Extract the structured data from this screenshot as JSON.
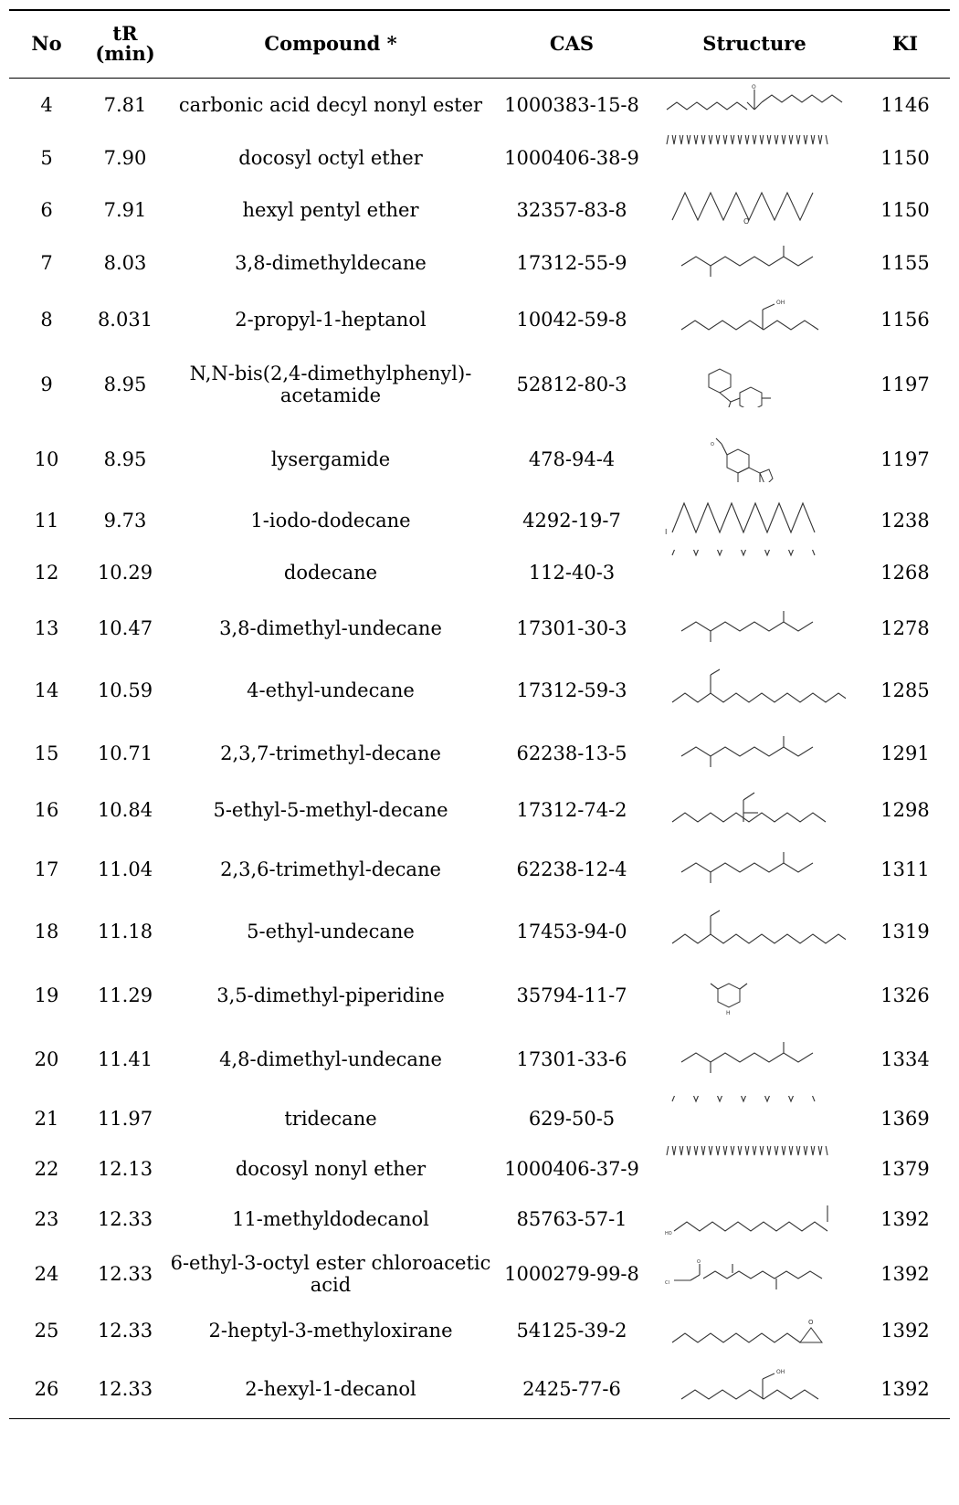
{
  "header": {
    "no": "No",
    "tr_line1": "tR",
    "tr_line2": "(min)",
    "compound": "Compound *",
    "cas": "CAS",
    "structure": "Structure",
    "ki": "KI"
  },
  "rows": [
    {
      "no": "4",
      "tr": "7.81",
      "compound": "carbonic acid decyl nonyl ester",
      "cas": "1000383-15-8",
      "ki": "1146",
      "structure": "carbonate-ester"
    },
    {
      "no": "5",
      "tr": "7.90",
      "compound": "docosyl octyl ether",
      "cas": "1000406-38-9",
      "ki": "1150",
      "structure": "long-ether"
    },
    {
      "no": "6",
      "tr": "7.91",
      "compound": "hexyl pentyl ether",
      "cas": "32357-83-8",
      "ki": "1150",
      "structure": "ether"
    },
    {
      "no": "7",
      "tr": "8.03",
      "compound": "3,8-dimethyldecane",
      "cas": "17312-55-9",
      "ki": "1155",
      "structure": "branched-alkane"
    },
    {
      "no": "8",
      "tr": "8.031",
      "compound": "2-propyl-1-heptanol",
      "cas": "10042-59-8",
      "ki": "1156",
      "structure": "alcohol"
    },
    {
      "no": "9",
      "tr": "8.95",
      "compound": "N,N-bis(2,4-dimethylphenyl)-acetamide",
      "cas": "52812-80-3",
      "ki": "1197",
      "structure": "aromatic-amide"
    },
    {
      "no": "10",
      "tr": "8.95",
      "compound": "lysergamide",
      "cas": "478-94-4",
      "ki": "1197",
      "structure": "ergoline"
    },
    {
      "no": "11",
      "tr": "9.73",
      "compound": "1-iodo-dodecane",
      "cas": "4292-19-7",
      "ki": "1238",
      "structure": "iodo-alkane"
    },
    {
      "no": "12",
      "tr": "10.29",
      "compound": "dodecane",
      "cas": "112-40-3",
      "ki": "1268",
      "structure": "linear-alkane"
    },
    {
      "no": "13",
      "tr": "10.47",
      "compound": "3,8-dimethyl-undecane",
      "cas": "17301-30-3",
      "ki": "1278",
      "structure": "branched-alkane"
    },
    {
      "no": "14",
      "tr": "10.59",
      "compound": "4-ethyl-undecane",
      "cas": "17312-59-3",
      "ki": "1285",
      "structure": "ethyl-alkane"
    },
    {
      "no": "15",
      "tr": "10.71",
      "compound": "2,3,7-trimethyl-decane",
      "cas": "62238-13-5",
      "ki": "1291",
      "structure": "branched-alkane"
    },
    {
      "no": "16",
      "tr": "10.84",
      "compound": "5-ethyl-5-methyl-decane",
      "cas": "17312-74-2",
      "ki": "1298",
      "structure": "quaternary-alkane"
    },
    {
      "no": "17",
      "tr": "11.04",
      "compound": "2,3,6-trimethyl-decane",
      "cas": "62238-12-4",
      "ki": "1311",
      "structure": "branched-alkane"
    },
    {
      "no": "18",
      "tr": "11.18",
      "compound": "5-ethyl-undecane",
      "cas": "17453-94-0",
      "ki": "1319",
      "structure": "ethyl-alkane"
    },
    {
      "no": "19",
      "tr": "11.29",
      "compound": "3,5-dimethyl-piperidine",
      "cas": "35794-11-7",
      "ki": "1326",
      "structure": "piperidine"
    },
    {
      "no": "20",
      "tr": "11.41",
      "compound": "4,8-dimethyl-undecane",
      "cas": "17301-33-6",
      "ki": "1334",
      "structure": "branched-alkane"
    },
    {
      "no": "21",
      "tr": "11.97",
      "compound": "tridecane",
      "cas": "629-50-5",
      "ki": "1369",
      "structure": "linear-alkane"
    },
    {
      "no": "22",
      "tr": "12.13",
      "compound": "docosyl nonyl ether",
      "cas": "1000406-37-9",
      "ki": "1379",
      "structure": "long-ether"
    },
    {
      "no": "23",
      "tr": "12.33",
      "compound": "11-methyldodecanol",
      "cas": "85763-57-1",
      "ki": "1392",
      "structure": "branched-alcohol"
    },
    {
      "no": "24",
      "tr": "12.33",
      "compound": "6-ethyl-3-octyl ester chloroacetic acid",
      "cas": "1000279-99-8",
      "ki": "1392",
      "structure": "chloroacetate"
    },
    {
      "no": "25",
      "tr": "12.33",
      "compound": "2-heptyl-3-methyloxirane",
      "cas": "54125-39-2",
      "ki": "1392",
      "structure": "oxirane"
    },
    {
      "no": "26",
      "tr": "12.33",
      "compound": "2-hexyl-1-decanol",
      "cas": "2425-77-6",
      "ki": "1392",
      "structure": "alcohol"
    }
  ],
  "structure_labels": {
    "oxygen": "O",
    "hydroxyl": "OH",
    "hydroxyl_left": "HO",
    "nitrogen_h": "H",
    "nitrogen": "N",
    "iodine": "I",
    "chlorine": "Cl"
  }
}
